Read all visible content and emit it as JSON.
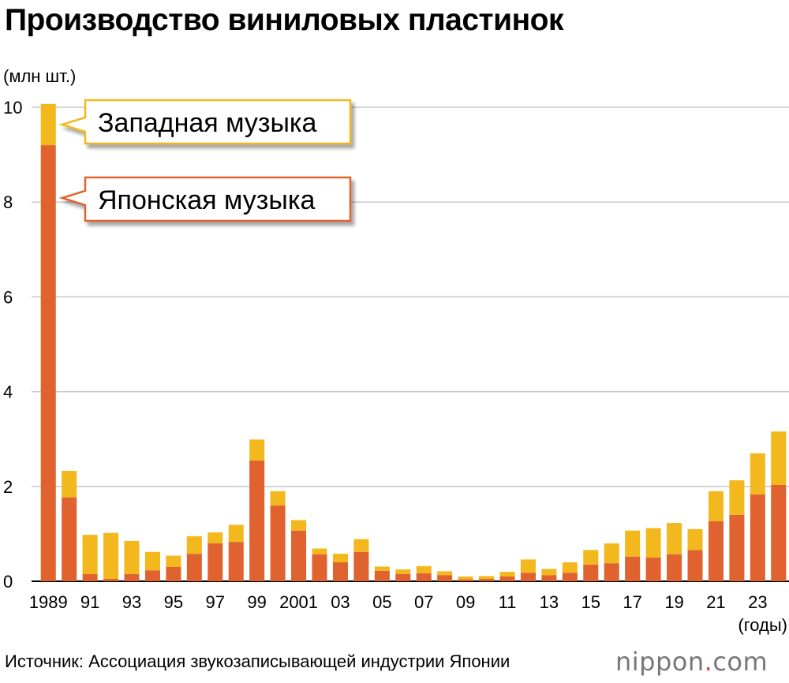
{
  "chart_data": {
    "type": "bar",
    "stacked": true,
    "title": "Производство виниловых пластинок",
    "ylabel": "(млн шт.)",
    "xlabel": "(годы)",
    "ylim": [
      0,
      10
    ],
    "yticks": [
      "0",
      "2",
      "4",
      "6",
      "8",
      "10"
    ],
    "x": [
      "1989",
      "1990",
      "1991",
      "1992",
      "1993",
      "1994",
      "1995",
      "1996",
      "1997",
      "1998",
      "1999",
      "2000",
      "2001",
      "2002",
      "2003",
      "2004",
      "2005",
      "2006",
      "2007",
      "2008",
      "2009",
      "2010",
      "2011",
      "2012",
      "2013",
      "2014",
      "2015",
      "2016",
      "2017",
      "2018",
      "2019",
      "2020",
      "2021",
      "2022",
      "2023",
      "2024"
    ],
    "xtick_labels": [
      "1989",
      "",
      "91",
      "",
      "93",
      "",
      "95",
      "",
      "97",
      "",
      "99",
      "",
      "2001",
      "",
      "03",
      "",
      "05",
      "",
      "07",
      "",
      "09",
      "",
      "11",
      "",
      "13",
      "",
      "15",
      "",
      "17",
      "",
      "19",
      "",
      "21",
      "",
      "23",
      ""
    ],
    "series": [
      {
        "name": "Японская музыка",
        "color": "#e0622f",
        "values": [
          9.2,
          1.77,
          0.15,
          0.05,
          0.15,
          0.23,
          0.3,
          0.58,
          0.8,
          0.83,
          2.55,
          1.6,
          1.07,
          0.57,
          0.4,
          0.62,
          0.22,
          0.15,
          0.17,
          0.13,
          0.04,
          0.05,
          0.1,
          0.18,
          0.13,
          0.18,
          0.35,
          0.38,
          0.52,
          0.5,
          0.57,
          0.66,
          1.27,
          1.4,
          1.83,
          2.03
        ]
      },
      {
        "name": "Западная музыка",
        "color": "#f2b81d",
        "values": [
          0.87,
          0.56,
          0.83,
          0.97,
          0.7,
          0.39,
          0.24,
          0.37,
          0.23,
          0.36,
          0.44,
          0.3,
          0.22,
          0.12,
          0.18,
          0.27,
          0.09,
          0.1,
          0.15,
          0.08,
          0.06,
          0.06,
          0.1,
          0.28,
          0.13,
          0.22,
          0.31,
          0.42,
          0.55,
          0.62,
          0.66,
          0.44,
          0.63,
          0.73,
          0.87,
          1.13
        ]
      }
    ],
    "grid": true
  },
  "source": "Источник: Ассоциация звукозаписывающей индустрии Японии",
  "logo_main": "nippon",
  "logo_dot": ".",
  "logo_tail": "com"
}
